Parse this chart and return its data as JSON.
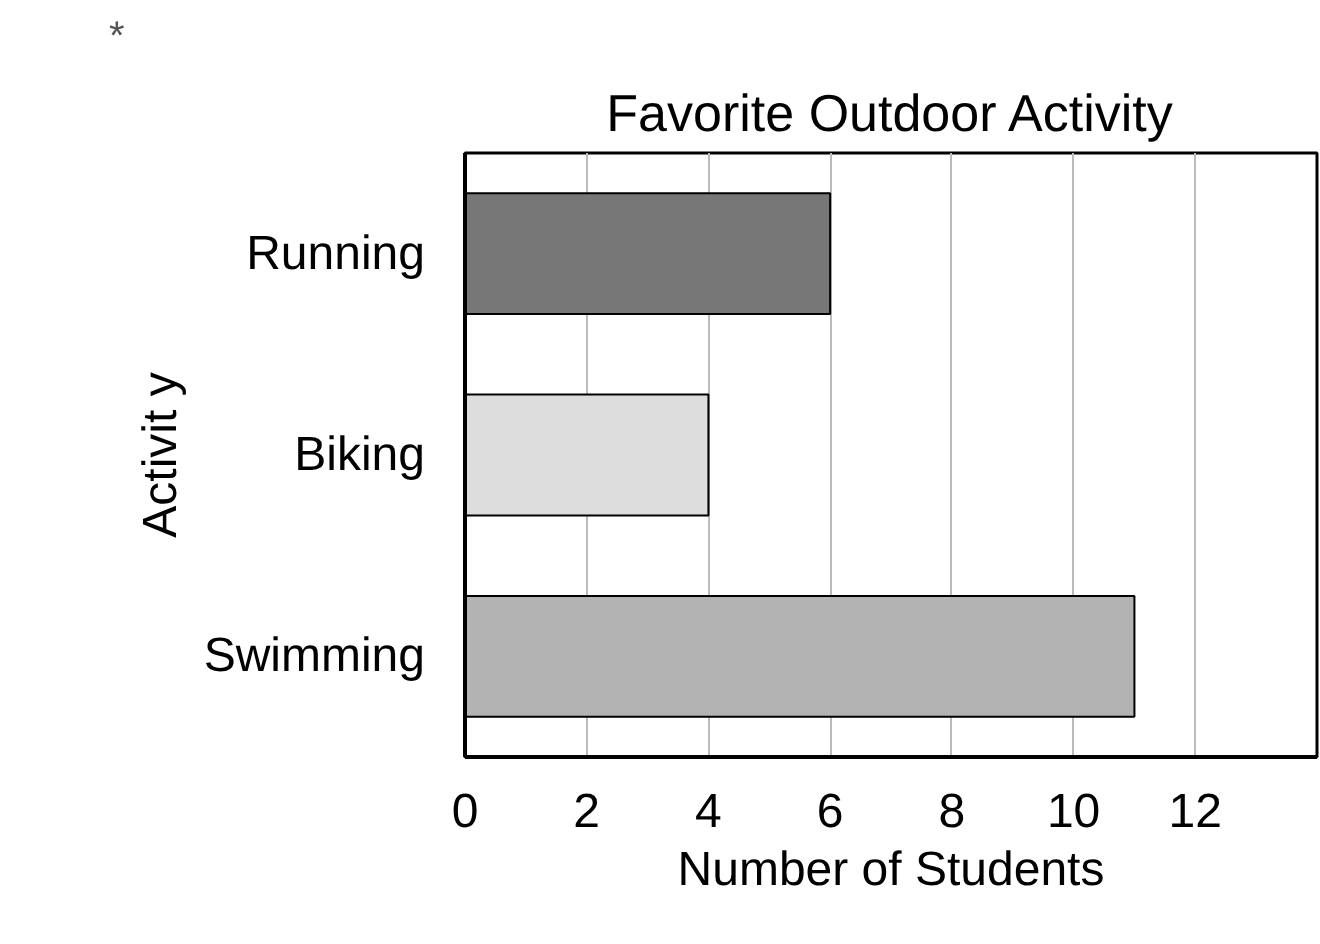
{
  "chart_data": {
    "type": "bar",
    "orientation": "horizontal",
    "title": "Favorite Outdoor Activity",
    "xlabel": "Number of Students",
    "ylabel": "Activit y",
    "annotations": [
      "*"
    ],
    "categories": [
      "Running",
      "Biking",
      "Swimming"
    ],
    "values": [
      6,
      4,
      11
    ],
    "colors": [
      "#777777",
      "#dddddd",
      "#b3b3b3"
    ],
    "xlim": [
      0,
      14
    ],
    "xticks": [
      0,
      2,
      4,
      6,
      8,
      10,
      12
    ],
    "grid": "x"
  }
}
